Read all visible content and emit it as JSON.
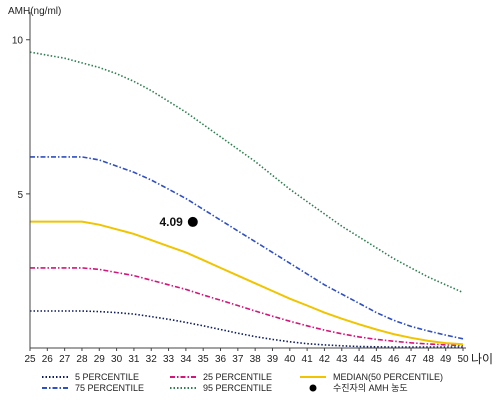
{
  "chart_data": {
    "type": "line",
    "title": "",
    "ylabel": "AMH(ng/ml)",
    "xlabel": "나이",
    "x": [
      25,
      26,
      27,
      28,
      29,
      30,
      31,
      32,
      33,
      34,
      35,
      36,
      37,
      38,
      39,
      40,
      41,
      42,
      43,
      44,
      45,
      46,
      47,
      48,
      49,
      50
    ],
    "xlim": [
      25,
      50
    ],
    "ylim": [
      0,
      10.9
    ],
    "yticks": [
      5,
      10
    ],
    "grid": false,
    "series": [
      {
        "name": "5 PERCENTILE",
        "color": "#0b1a5c",
        "dash": "dot",
        "values": [
          1.2,
          1.2,
          1.2,
          1.2,
          1.18,
          1.15,
          1.1,
          1.02,
          0.93,
          0.83,
          0.72,
          0.6,
          0.48,
          0.37,
          0.28,
          0.2,
          0.14,
          0.1,
          0.07,
          0.05,
          0.04,
          0.03,
          0.03,
          0.03,
          0.03,
          0.03
        ]
      },
      {
        "name": "75 PERCENTILE",
        "color": "#2f4fc4",
        "dash": "dashdot",
        "values": [
          6.2,
          6.2,
          6.2,
          6.2,
          6.1,
          5.9,
          5.7,
          5.45,
          5.15,
          4.85,
          4.5,
          4.15,
          3.8,
          3.45,
          3.1,
          2.75,
          2.4,
          2.05,
          1.75,
          1.45,
          1.15,
          0.9,
          0.7,
          0.55,
          0.42,
          0.3
        ]
      },
      {
        "name": "25 PERCENTILE",
        "color": "#d4157a",
        "dash": "dashdot",
        "values": [
          2.6,
          2.6,
          2.6,
          2.6,
          2.55,
          2.45,
          2.35,
          2.2,
          2.05,
          1.9,
          1.72,
          1.55,
          1.38,
          1.2,
          1.03,
          0.87,
          0.72,
          0.58,
          0.46,
          0.36,
          0.28,
          0.22,
          0.17,
          0.13,
          0.1,
          0.08
        ]
      },
      {
        "name": "95 PERCENTILE",
        "color": "#2e7d4f",
        "dash": "dot",
        "values": [
          9.6,
          9.5,
          9.4,
          9.25,
          9.1,
          8.9,
          8.65,
          8.35,
          8.0,
          7.65,
          7.25,
          6.85,
          6.45,
          6.05,
          5.6,
          5.15,
          4.75,
          4.35,
          3.95,
          3.6,
          3.25,
          2.9,
          2.6,
          2.3,
          2.05,
          1.8
        ]
      },
      {
        "name": "MEDIAN(50 PERCENTILE)",
        "color": "#f0c400",
        "dash": "solid",
        "values": [
          4.1,
          4.1,
          4.1,
          4.1,
          4.0,
          3.85,
          3.7,
          3.5,
          3.3,
          3.1,
          2.85,
          2.6,
          2.35,
          2.1,
          1.85,
          1.6,
          1.38,
          1.15,
          0.95,
          0.77,
          0.6,
          0.45,
          0.33,
          0.23,
          0.16,
          0.12
        ]
      }
    ],
    "point": {
      "name": "수진자의 AMH 농도",
      "x": 34.4,
      "y": 4.09,
      "label": "4.09",
      "color": "#000000"
    },
    "legend_position": "bottom"
  }
}
